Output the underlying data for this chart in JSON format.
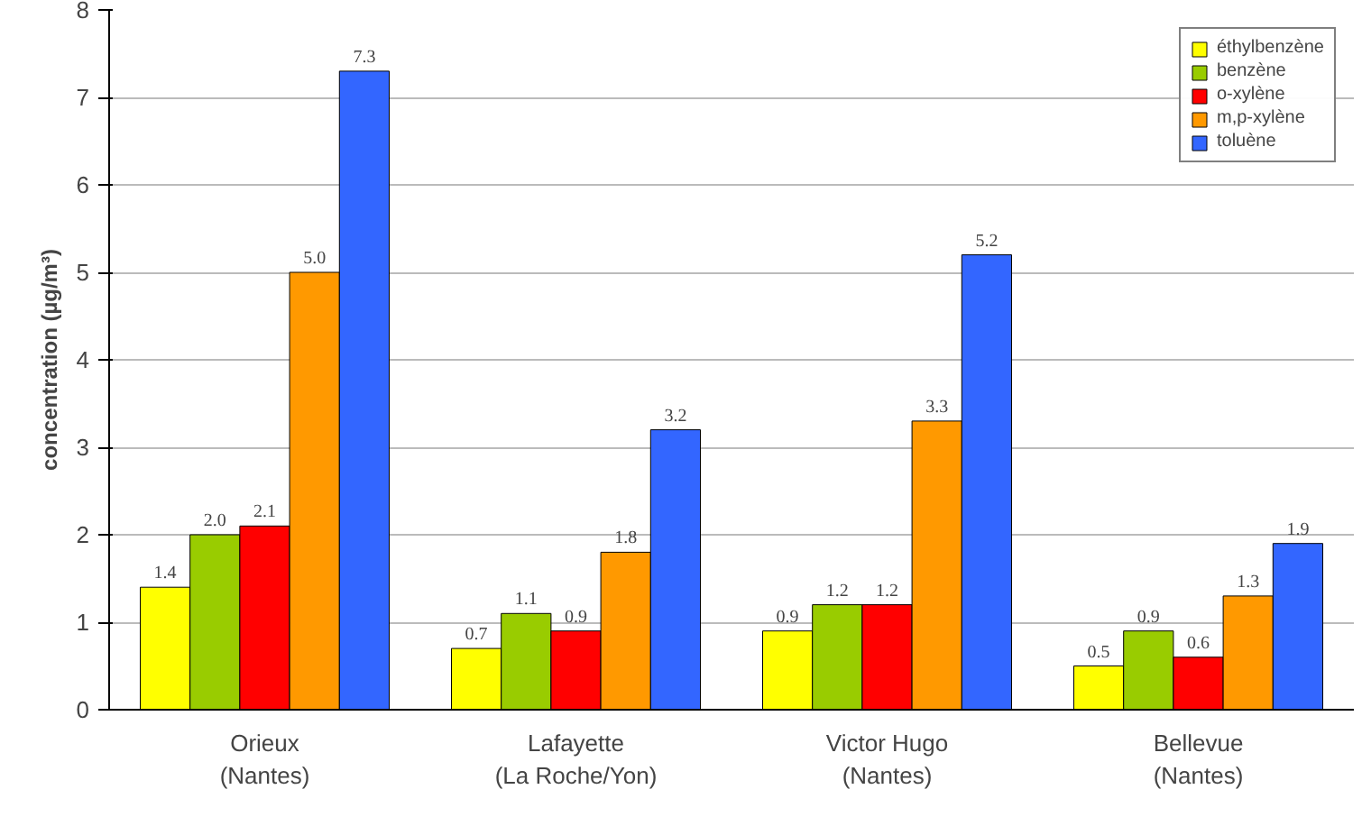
{
  "chart_data": {
    "type": "bar",
    "ylabel": "concentration (µg/m³)",
    "categories": [
      "Orieux\n(Nantes)",
      "Lafayette\n(La Roche/Yon)",
      "Victor Hugo\n(Nantes)",
      "Bellevue\n(Nantes)"
    ],
    "series": [
      {
        "name": "éthylbenzène",
        "color": "#ffff00",
        "values": [
          1.4,
          0.7,
          0.9,
          0.5
        ],
        "value_labels": [
          "1.4",
          "0.7",
          "0.9",
          "0.5"
        ]
      },
      {
        "name": "benzène",
        "color": "#99cc00",
        "values": [
          2.0,
          1.1,
          1.2,
          0.9
        ],
        "value_labels": [
          "2.0",
          "1.1",
          "1.2",
          "0.9"
        ]
      },
      {
        "name": "o-xylène",
        "color": "#ff0000",
        "values": [
          2.1,
          0.9,
          1.2,
          0.6
        ],
        "value_labels": [
          "2.1",
          "0.9",
          "1.2",
          "0.6"
        ]
      },
      {
        "name": "m,p-xylène",
        "color": "#ff9900",
        "values": [
          5.0,
          1.8,
          3.3,
          1.3
        ],
        "value_labels": [
          "5.0",
          "1.8",
          "3.3",
          "1.3"
        ]
      },
      {
        "name": "toluène",
        "color": "#3366ff",
        "values": [
          7.3,
          3.2,
          5.2,
          1.9
        ],
        "value_labels": [
          "7.3",
          "3.2",
          "5.2",
          "1.9"
        ]
      }
    ],
    "ylim": [
      0,
      8
    ],
    "yticks": [
      0,
      1,
      2,
      3,
      4,
      5,
      6,
      7,
      8
    ],
    "grid": "y",
    "legend": "top right"
  }
}
